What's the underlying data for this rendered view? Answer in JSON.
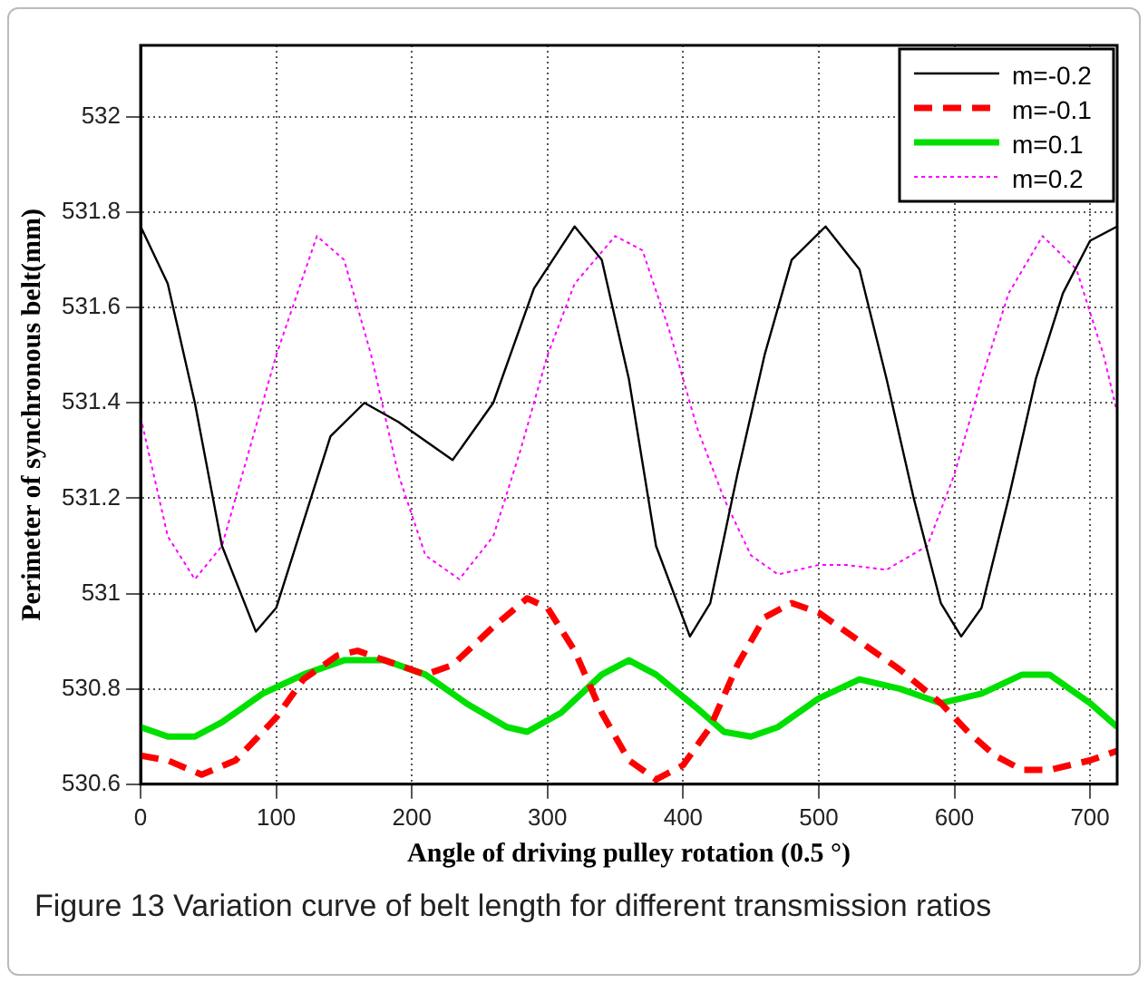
{
  "chart_data": {
    "type": "line",
    "title": "Figure 13  Variation curve of belt length for different transmission ratios",
    "xlabel": "Angle of driving pulley rotation (0.5 °)",
    "ylabel": "Perimeter of synchronous belt(mm)",
    "xlim": [
      0,
      720
    ],
    "xticks": [
      0,
      100,
      200,
      300,
      400,
      500,
      600,
      700
    ],
    "ylim": [
      530.6,
      532.15
    ],
    "yticks": [
      530.6,
      530.8,
      531,
      531.2,
      531.4,
      531.6,
      531.8,
      532
    ],
    "grid": true,
    "legend": "top right",
    "marker": "none",
    "series": [
      {
        "name": "m=-0.2",
        "color": "#000000",
        "line_style": "solid",
        "x": [
          0,
          20,
          40,
          60,
          85,
          100,
          120,
          140,
          165,
          190,
          230,
          260,
          290,
          320,
          340,
          360,
          380,
          405,
          420,
          440,
          460,
          480,
          505,
          530,
          550,
          570,
          590,
          605,
          620,
          640,
          660,
          680,
          700,
          720
        ],
        "values": [
          531.77,
          531.65,
          531.4,
          531.1,
          530.92,
          530.97,
          531.15,
          531.33,
          531.4,
          531.36,
          531.28,
          531.4,
          531.64,
          531.77,
          531.7,
          531.45,
          531.1,
          530.91,
          530.98,
          531.25,
          531.5,
          531.7,
          531.77,
          531.68,
          531.45,
          531.2,
          530.98,
          530.91,
          530.97,
          531.2,
          531.45,
          531.63,
          531.74,
          531.77
        ]
      },
      {
        "name": "m=-0.1",
        "color": "#ff0000",
        "line_style": "dashed",
        "x": [
          0,
          20,
          45,
          70,
          100,
          120,
          145,
          160,
          180,
          210,
          230,
          260,
          285,
          300,
          320,
          340,
          360,
          380,
          400,
          420,
          440,
          460,
          480,
          500,
          530,
          560,
          590,
          610,
          630,
          650,
          670,
          700,
          720
        ],
        "values": [
          530.66,
          530.65,
          530.62,
          530.65,
          530.74,
          530.82,
          530.87,
          530.88,
          530.86,
          530.83,
          530.85,
          530.93,
          530.99,
          530.97,
          530.88,
          530.75,
          530.65,
          530.61,
          530.64,
          530.72,
          530.85,
          530.95,
          530.98,
          530.96,
          530.9,
          530.84,
          530.77,
          530.71,
          530.66,
          530.63,
          530.63,
          530.65,
          530.67
        ]
      },
      {
        "name": "m=0.1",
        "color": "#00e000",
        "line_style": "solid",
        "x": [
          0,
          20,
          40,
          60,
          90,
          120,
          150,
          180,
          210,
          240,
          270,
          285,
          310,
          340,
          360,
          380,
          410,
          430,
          450,
          470,
          500,
          530,
          560,
          590,
          620,
          650,
          670,
          700,
          720
        ],
        "values": [
          530.72,
          530.7,
          530.7,
          530.73,
          530.79,
          530.83,
          530.86,
          530.86,
          530.83,
          530.77,
          530.72,
          530.71,
          530.75,
          530.83,
          530.86,
          530.83,
          530.76,
          530.71,
          530.7,
          530.72,
          530.78,
          530.82,
          530.8,
          530.77,
          530.79,
          530.83,
          530.83,
          530.77,
          530.72
        ]
      },
      {
        "name": "m=0.2",
        "color": "#ff00ff",
        "line_style": "dotted",
        "x": [
          0,
          20,
          40,
          60,
          80,
          100,
          130,
          150,
          170,
          190,
          210,
          235,
          260,
          280,
          300,
          320,
          350,
          370,
          390,
          410,
          430,
          450,
          470,
          500,
          520,
          550,
          580,
          600,
          620,
          640,
          665,
          690,
          710,
          720
        ],
        "values": [
          531.37,
          531.12,
          531.03,
          531.1,
          531.3,
          531.5,
          531.75,
          531.7,
          531.5,
          531.25,
          531.08,
          531.03,
          531.12,
          531.3,
          531.5,
          531.65,
          531.75,
          531.72,
          531.55,
          531.35,
          531.2,
          531.08,
          531.04,
          531.06,
          531.06,
          531.05,
          531.1,
          531.25,
          531.45,
          531.63,
          531.75,
          531.68,
          531.5,
          531.38
        ]
      }
    ]
  }
}
